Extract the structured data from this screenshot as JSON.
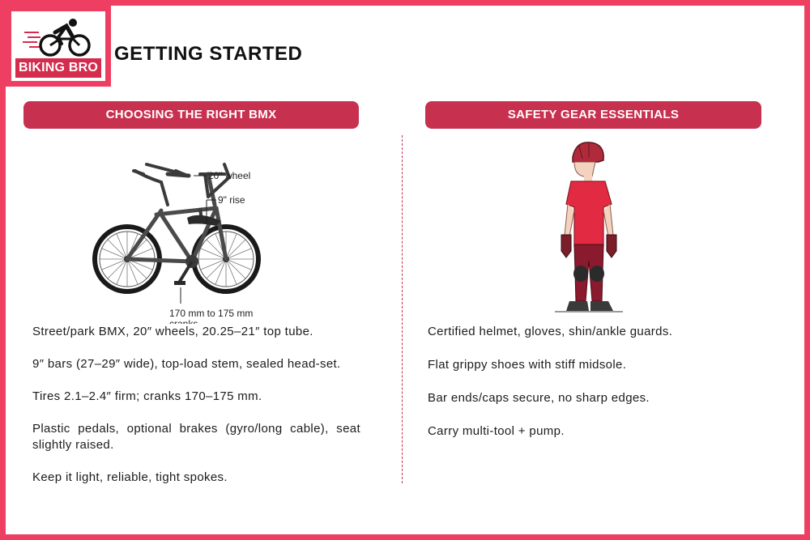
{
  "brand": {
    "logo_text": "BIKING BRO",
    "accent": "#ee3f62",
    "header_color": "#c8304f"
  },
  "page": {
    "title": "GETTING STARTED"
  },
  "left": {
    "header": "CHOOSING THE RIGHT BMX",
    "illustration": {
      "icon": "bmx-bike-illustration",
      "callouts": {
        "wheel": "20\" wheel",
        "rise": "9\" rise",
        "cranks_line1": "170 mm to 175 mm",
        "cranks_line2": "cranks"
      }
    },
    "bullets": [
      "Street/park BMX, 20″ wheels, 20.25–21″ top tube.",
      "9″ bars (27–29″ wide), top-load stem, sealed head-set.",
      "Tires 2.1–2.4″ firm; cranks 170–175 mm.",
      "Plastic pedals, optional brakes (gyro/long cable), seat slightly raised.",
      "Keep it light, reliable, tight spokes."
    ]
  },
  "right": {
    "header": "SAFETY GEAR ESSENTIALS",
    "illustration": {
      "icon": "rider-with-safety-gear-illustration"
    },
    "bullets": [
      "Certified helmet, gloves, shin/ankle guards.",
      "Flat grippy shoes with stiff midsole.",
      "Bar ends/caps secure, no sharp edges.",
      "Carry multi-tool + pump."
    ]
  }
}
